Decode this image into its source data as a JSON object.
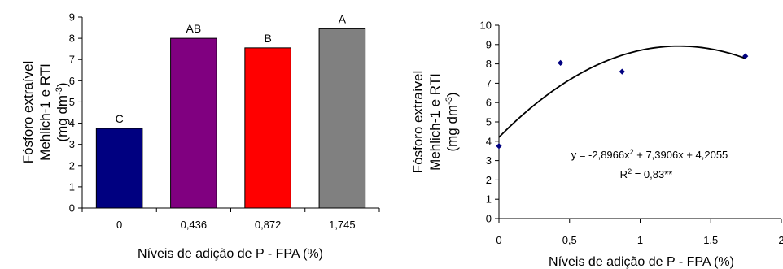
{
  "chart_data": [
    {
      "type": "bar",
      "categories": [
        "0",
        "0,436",
        "0,872",
        "1,745"
      ],
      "values": [
        3.75,
        8.0,
        7.55,
        8.45
      ],
      "bar_labels": [
        "C",
        "AB",
        "B",
        "A"
      ],
      "bar_colors": [
        "#000080",
        "#800080",
        "#ff0000",
        "#808080"
      ],
      "ylim": [
        0,
        9
      ],
      "yticks": [
        "0",
        "1",
        "2",
        "3",
        "4",
        "5",
        "6",
        "7",
        "8",
        "9"
      ],
      "ylabel_lines": [
        "Fósforo extraível",
        "Mehlich-1 e RTI",
        "(mg dm",
        "-3",
        ")"
      ],
      "xlabel": "Níveis de adição de P - FPA  (%)"
    },
    {
      "type": "scatter",
      "x": [
        0,
        0.436,
        0.872,
        1.745
      ],
      "y": [
        3.75,
        8.05,
        7.6,
        8.4
      ],
      "marker_color": "#000080",
      "xlim": [
        0,
        2
      ],
      "ylim": [
        0,
        10
      ],
      "xticks": [
        "0",
        "0,5",
        "1",
        "1,5",
        "2"
      ],
      "yticks": [
        "0",
        "1",
        "2",
        "3",
        "4",
        "5",
        "6",
        "7",
        "8",
        "9",
        "10"
      ],
      "ylabel_lines": [
        "Fósforo extraível",
        "Mehlich-1 e RTI",
        "(mg dm",
        "-3",
        ")"
      ],
      "xlabel": "Níveis de adição de P - FPA (%)",
      "trendline": {
        "a": -2.8966,
        "b": 7.3906,
        "c": 4.2055,
        "x_range": [
          0,
          1.745
        ]
      },
      "equation": {
        "prefix": "y = -2,8966x",
        "sup": "2",
        "suffix": " + 7,3906x + 4,2055"
      },
      "r2": {
        "prefix": "R",
        "sup": "2",
        "suffix": " = 0,83**"
      }
    }
  ]
}
